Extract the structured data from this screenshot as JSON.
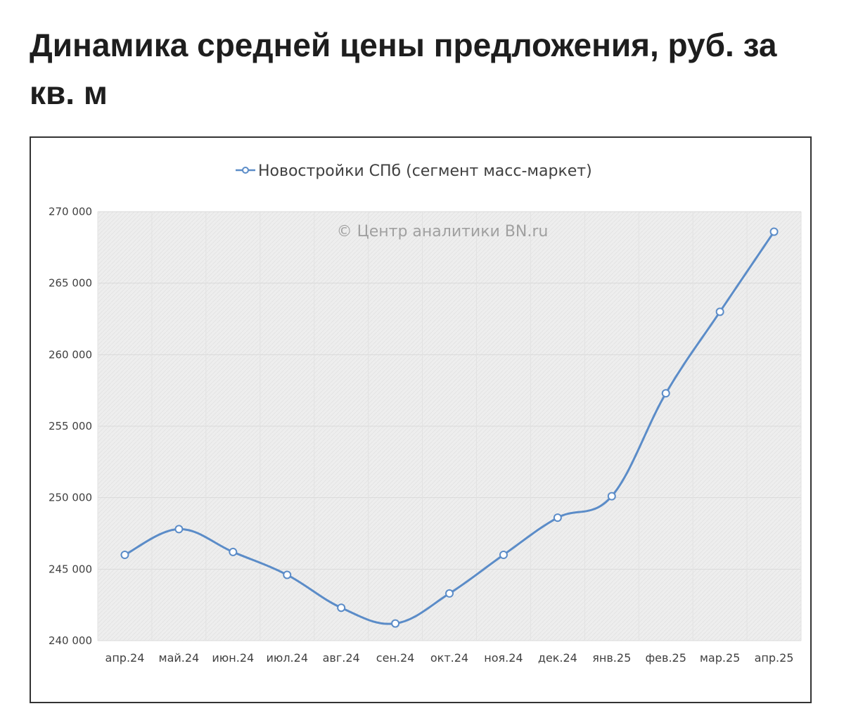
{
  "page": {
    "heading": "Динамика средней цены предложения, руб. за кв. м"
  },
  "chart_data": {
    "type": "line",
    "title": "Динамика средней цены предложения, руб. за кв. м",
    "watermark": "© Центр аналитики BN.ru",
    "categories": [
      "апр.24",
      "май.24",
      "июн.24",
      "июл.24",
      "авг.24",
      "сен.24",
      "окт.24",
      "ноя.24",
      "дек.24",
      "янв.25",
      "фев.25",
      "мар.25",
      "апр.25"
    ],
    "series": [
      {
        "name": "Новостройки СПб (сегмент масс-маркет)",
        "color": "#5b8cc8",
        "values": [
          246000,
          247800,
          246200,
          244600,
          242300,
          241200,
          243300,
          246000,
          248600,
          250100,
          257300,
          263000,
          268600
        ]
      }
    ],
    "ylim": [
      240000,
      270000
    ],
    "yticks": [
      240000,
      245000,
      250000,
      255000,
      260000,
      265000,
      270000
    ],
    "ytick_labels": [
      "240 000",
      "245 000",
      "250 000",
      "255 000",
      "260 000",
      "265 000",
      "270 000"
    ],
    "xlabel": "",
    "ylabel": "",
    "grid": true,
    "legend_position": "top-center",
    "plot_background": "#efefef"
  }
}
